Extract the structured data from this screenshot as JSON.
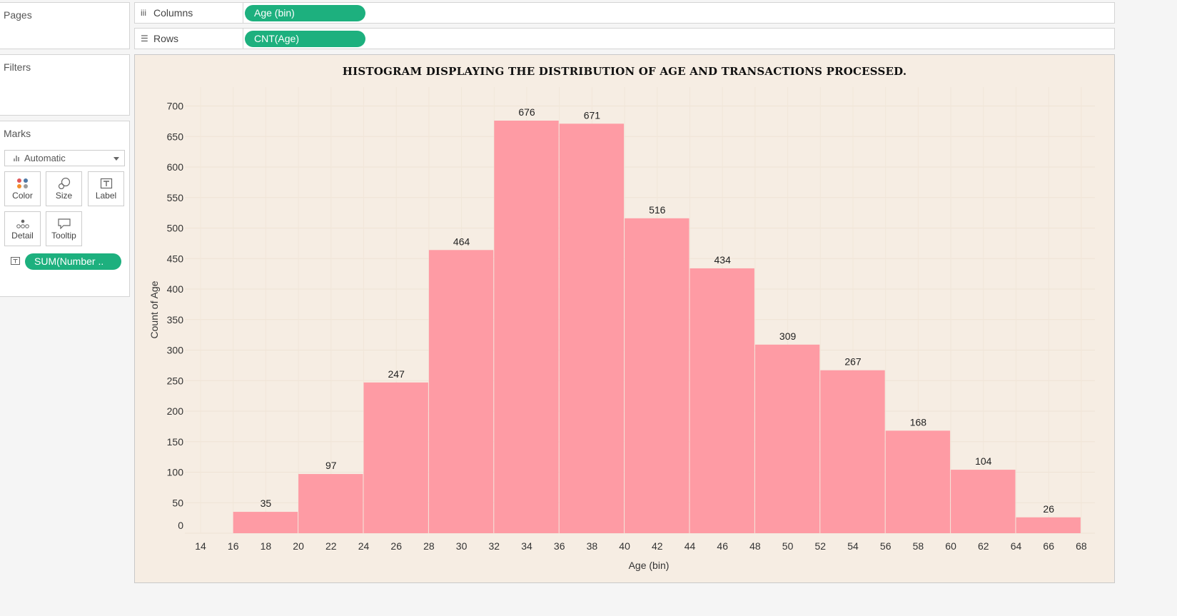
{
  "sidebar": {
    "pages_title": "Pages",
    "filters_title": "Filters",
    "marks_title": "Marks",
    "mark_type": "Automatic",
    "cards": [
      {
        "label": "Color",
        "icon": "color-dots-icon"
      },
      {
        "label": "Size",
        "icon": "size-shapes-icon"
      },
      {
        "label": "Label",
        "icon": "label-text-icon"
      },
      {
        "label": "Detail",
        "icon": "detail-dots-icon"
      },
      {
        "label": "Tooltip",
        "icon": "tooltip-bubble-icon"
      }
    ],
    "label_pill": "SUM(Number .."
  },
  "shelves": {
    "columns_label": "Columns",
    "columns_pill": "Age (bin)",
    "rows_label": "Rows",
    "rows_pill": "CNT(Age)"
  },
  "colors": {
    "bar": "#fe9ba4",
    "pill": "#1db07e",
    "viz_bg": "#f6ede3"
  },
  "chart_data": {
    "type": "bar",
    "title": "HISTOGRAM DISPLAYING THE DISTRIBUTION OF AGE AND TRANSACTIONS PROCESSED.",
    "xlabel": "Age (bin)",
    "ylabel": "Count of Age",
    "bin_width": 4,
    "bins": [
      16,
      20,
      24,
      28,
      32,
      36,
      40,
      44,
      48,
      52,
      56,
      60,
      64
    ],
    "values": [
      35,
      97,
      247,
      464,
      676,
      671,
      516,
      434,
      309,
      267,
      168,
      104,
      26
    ],
    "x_ticks": [
      14,
      16,
      18,
      20,
      22,
      24,
      26,
      28,
      30,
      32,
      34,
      36,
      38,
      40,
      42,
      44,
      46,
      48,
      50,
      52,
      54,
      56,
      58,
      60,
      62,
      64,
      66,
      68
    ],
    "y_ticks": [
      0,
      50,
      100,
      150,
      200,
      250,
      300,
      350,
      400,
      450,
      500,
      550,
      600,
      650,
      700
    ],
    "xlim": [
      14,
      68
    ],
    "ylim": [
      0,
      700
    ],
    "grid": true
  }
}
